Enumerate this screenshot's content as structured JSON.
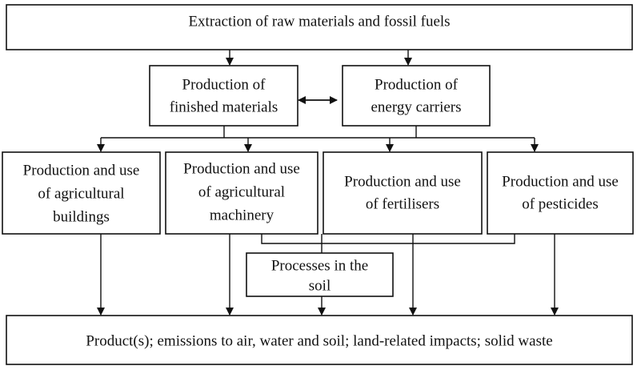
{
  "nodes": [
    {
      "lines": [
        "Extraction of raw materials and fossil fuels"
      ]
    },
    {
      "lines": [
        "Production of",
        "finished materials"
      ]
    },
    {
      "lines": [
        "Production of",
        "energy carriers"
      ]
    },
    {
      "lines": [
        "Production and use",
        "of agricultural",
        "buildings"
      ]
    },
    {
      "lines": [
        "Production and use",
        "of agricultural",
        "machinery"
      ]
    },
    {
      "lines": [
        "Production and use",
        "of fertilisers"
      ]
    },
    {
      "lines": [
        "Production and use",
        "of pesticides"
      ]
    },
    {
      "lines": [
        "Processes in the",
        "soil"
      ]
    },
    {
      "lines": [
        "Product(s); emissions to air, water and soil; land-related impacts; solid waste"
      ]
    }
  ]
}
